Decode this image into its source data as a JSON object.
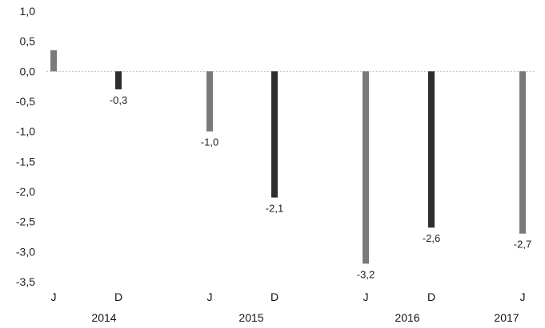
{
  "chart_data": {
    "type": "bar",
    "title": "",
    "xlabel": "",
    "ylabel": "",
    "ylim": [
      -3.5,
      1.0
    ],
    "y_ticks": [
      "1,0",
      "0,5",
      "0,0",
      "-0,5",
      "-1,0",
      "-1,5",
      "-2,0",
      "-2,5",
      "-3,0",
      "-3,5"
    ],
    "y_tick_values": [
      1.0,
      0.5,
      0.0,
      -0.5,
      -1.0,
      -1.5,
      -2.0,
      -2.5,
      -3.0,
      -3.5
    ],
    "categories": [
      "J",
      "D",
      "J",
      "D",
      "J",
      "D",
      "J"
    ],
    "years": [
      "2014",
      "2015",
      "2016",
      "2017"
    ],
    "values": [
      0.35,
      -0.3,
      -1.0,
      -2.1,
      -3.2,
      -2.6,
      -2.7
    ],
    "data_labels": [
      "",
      "-0,3",
      "-1,0",
      "-2,1",
      "-3,2",
      "-2,6",
      "-2,7"
    ],
    "bar_colors": [
      "#7a7a7a",
      "#2e2e2e",
      "#7a7a7a",
      "#2e2e2e",
      "#7a7a7a",
      "#2e2e2e",
      "#7a7a7a"
    ],
    "grid": false,
    "legend": "none"
  }
}
